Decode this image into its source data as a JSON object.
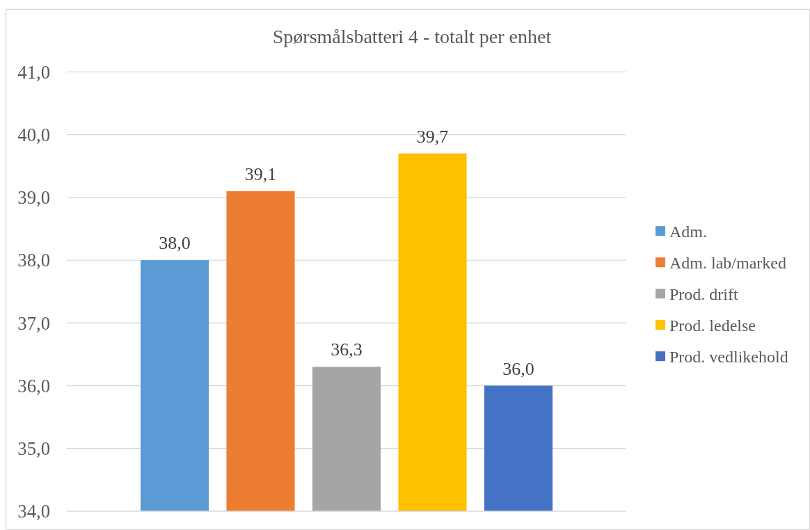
{
  "chart_data": {
    "type": "bar",
    "title": "Spørsmålsbatteri 4 - totalt per enhet",
    "categories": [
      null
    ],
    "series": [
      {
        "name": "Adm.",
        "color": "#5b9bd5",
        "values": [
          38.0
        ],
        "value_labels": [
          "38,0"
        ]
      },
      {
        "name": "Adm. lab/marked",
        "color": "#ed7d31",
        "values": [
          39.1
        ],
        "value_labels": [
          "39,1"
        ]
      },
      {
        "name": "Prod. drift",
        "color": "#a5a5a5",
        "values": [
          36.3
        ],
        "value_labels": [
          "36,3"
        ]
      },
      {
        "name": "Prod. ledelse",
        "color": "#ffc000",
        "values": [
          39.7
        ],
        "value_labels": [
          "39,7"
        ]
      },
      {
        "name": "Prod. vedlikehold",
        "color": "#4472c4",
        "values": [
          36.0
        ],
        "value_labels": [
          "36,0"
        ]
      }
    ],
    "ylim": [
      34,
      41
    ],
    "yticks": [
      {
        "value": 34,
        "label": "34,0"
      },
      {
        "value": 35,
        "label": "35,0"
      },
      {
        "value": 36,
        "label": "36,0"
      },
      {
        "value": 37,
        "label": "37,0"
      },
      {
        "value": 38,
        "label": "38,0"
      },
      {
        "value": 39,
        "label": "39,0"
      },
      {
        "value": 40,
        "label": "40,0"
      },
      {
        "value": 41,
        "label": "41,0"
      }
    ],
    "grid": "y",
    "legend": "right"
  }
}
